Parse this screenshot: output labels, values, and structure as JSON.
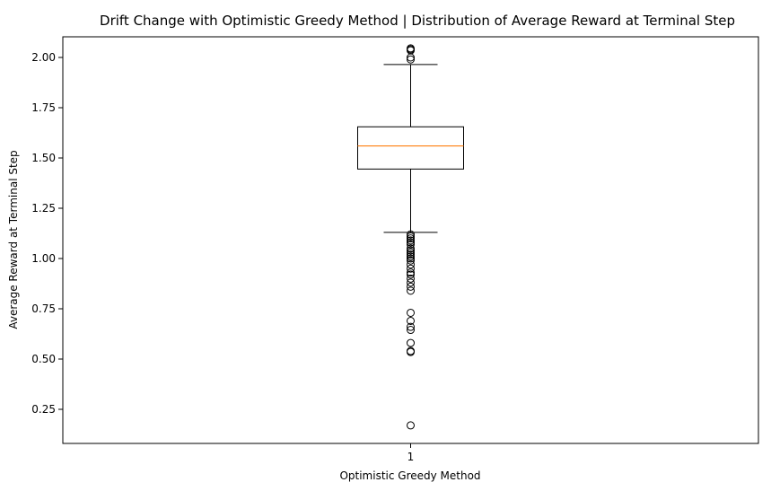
{
  "chart_data": {
    "type": "box",
    "title": "Drift Change with Optimistic Greedy Method | Distribution of Average Reward at Terminal Step",
    "xlabel": "Optimistic Greedy Method",
    "ylabel": "Average Reward at Terminal Step",
    "categories": [
      "1"
    ],
    "ylim": [
      0.1,
      2.15
    ],
    "yticks": [
      "0.25",
      "0.50",
      "0.75",
      "1.00",
      "1.25",
      "1.50",
      "1.75",
      "2.00"
    ],
    "grid": false,
    "box": {
      "whisker_low": 1.13,
      "q1": 1.445,
      "median": 1.56,
      "q3": 1.655,
      "whisker_high": 1.965
    },
    "outliers": [
      2.045,
      2.04,
      2.035,
      2.0,
      1.99,
      1.12,
      1.11,
      1.1,
      1.09,
      1.08,
      1.07,
      1.05,
      1.04,
      1.03,
      1.02,
      1.01,
      1.0,
      0.99,
      0.97,
      0.95,
      0.93,
      0.92,
      0.9,
      0.88,
      0.86,
      0.84,
      0.73,
      0.69,
      0.66,
      0.645,
      0.58,
      0.54,
      0.535,
      0.17
    ],
    "colors": {
      "box": "#000000",
      "median": "#ff7f0e",
      "outlier": "#000000"
    }
  }
}
